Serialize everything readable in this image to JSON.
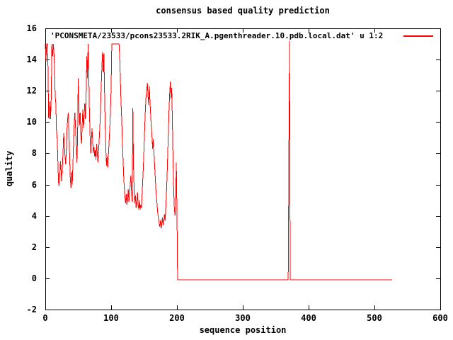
{
  "chart_data": {
    "type": "line",
    "title": "consensus based quality prediction",
    "xlabel": "sequence position",
    "ylabel": "quality",
    "xlim": [
      0,
      600
    ],
    "ylim": [
      -2,
      16
    ],
    "xticks": [
      0,
      100,
      200,
      300,
      400,
      500,
      600
    ],
    "yticks": [
      -2,
      0,
      2,
      4,
      6,
      8,
      10,
      12,
      14,
      16
    ],
    "grid": false,
    "legend_position": "top-right-inside",
    "background_color": "#ffffff",
    "axis_color": "#000000",
    "text_color": "#000000",
    "series": [
      {
        "name": "'PCONSMETA/23533/pcons23533.2RIK_A.pgenthreader.10.pdb.local.dat' u 1:2",
        "color": "#ff0000",
        "points": [
          [
            0,
            15
          ],
          [
            1,
            13.9
          ],
          [
            2,
            15
          ],
          [
            3,
            15
          ],
          [
            4,
            13.8
          ],
          [
            5,
            10.3
          ],
          [
            6,
            10.2
          ],
          [
            7,
            11.3
          ],
          [
            8,
            10.2
          ],
          [
            9,
            11.6
          ],
          [
            10,
            15
          ],
          [
            11,
            14.2
          ],
          [
            12,
            15
          ],
          [
            13,
            14.6
          ],
          [
            14,
            13.4
          ],
          [
            15,
            11.6
          ],
          [
            16,
            11.2
          ],
          [
            17,
            9.4
          ],
          [
            18,
            9
          ],
          [
            19,
            7.6
          ],
          [
            20,
            6.2
          ],
          [
            21,
            5.9
          ],
          [
            22,
            6.6
          ],
          [
            23,
            7.5
          ],
          [
            24,
            6.9
          ],
          [
            25,
            6.2
          ],
          [
            26,
            7.2
          ],
          [
            27,
            8.1
          ],
          [
            28,
            9.3
          ],
          [
            29,
            8.5
          ],
          [
            30,
            7.8
          ],
          [
            31,
            7.3
          ],
          [
            32,
            8.3
          ],
          [
            33,
            9.6
          ],
          [
            34,
            10.2
          ],
          [
            35,
            10.6
          ],
          [
            36,
            9.2
          ],
          [
            37,
            7.8
          ],
          [
            38,
            6.4
          ],
          [
            39,
            5.8
          ],
          [
            40,
            6.8
          ],
          [
            41,
            6
          ],
          [
            42,
            7.4
          ],
          [
            43,
            8.8
          ],
          [
            44,
            10
          ],
          [
            45,
            10.6
          ],
          [
            46,
            9.6
          ],
          [
            47,
            8.6
          ],
          [
            48,
            7.4
          ],
          [
            49,
            9
          ],
          [
            50,
            12.8
          ],
          [
            51,
            11
          ],
          [
            52,
            9.8
          ],
          [
            53,
            10.6
          ],
          [
            54,
            9.2
          ],
          [
            55,
            8.6
          ],
          [
            56,
            9.8
          ],
          [
            57,
            10.8
          ],
          [
            58,
            9.6
          ],
          [
            59,
            10.4
          ],
          [
            60,
            11.2
          ],
          [
            61,
            10.2
          ],
          [
            62,
            11.8
          ],
          [
            63,
            14.2
          ],
          [
            64,
            12.8
          ],
          [
            65,
            15
          ],
          [
            66,
            13.2
          ],
          [
            67,
            10.8
          ],
          [
            68,
            9.2
          ],
          [
            69,
            8
          ],
          [
            70,
            8.8
          ],
          [
            71,
            9.6
          ],
          [
            72,
            8.8
          ],
          [
            73,
            8
          ],
          [
            74,
            8.4
          ],
          [
            75,
            7.8
          ],
          [
            76,
            8.2
          ],
          [
            77,
            7.6
          ],
          [
            78,
            8.6
          ],
          [
            79,
            8
          ],
          [
            80,
            7.4
          ],
          [
            81,
            8.2
          ],
          [
            82,
            9
          ],
          [
            83,
            9.8
          ],
          [
            84,
            11
          ],
          [
            85,
            12.4
          ],
          [
            86,
            13.6
          ],
          [
            87,
            14.5
          ],
          [
            88,
            13.2
          ],
          [
            89,
            14.4
          ],
          [
            90,
            12
          ],
          [
            91,
            9.8
          ],
          [
            92,
            8.2
          ],
          [
            93,
            7.2
          ],
          [
            94,
            7.8
          ],
          [
            95,
            7.1
          ],
          [
            96,
            8
          ],
          [
            97,
            8.8
          ],
          [
            98,
            9.6
          ],
          [
            99,
            10.8
          ],
          [
            100,
            12.2
          ],
          [
            101,
            15
          ],
          [
            102,
            15
          ],
          [
            103,
            15
          ],
          [
            104,
            15
          ],
          [
            105,
            15
          ],
          [
            106,
            15
          ],
          [
            107,
            15
          ],
          [
            108,
            15
          ],
          [
            109,
            15
          ],
          [
            110,
            15
          ],
          [
            111,
            15
          ],
          [
            112,
            15
          ],
          [
            113,
            14.2
          ],
          [
            114,
            12.8
          ],
          [
            115,
            11.4
          ],
          [
            116,
            10.2
          ],
          [
            117,
            9
          ],
          [
            118,
            7.8
          ],
          [
            119,
            6.6
          ],
          [
            120,
            5.8
          ],
          [
            121,
            5.2
          ],
          [
            122,
            4.8
          ],
          [
            123,
            5.4
          ],
          [
            124,
            4.7
          ],
          [
            125,
            5.1
          ],
          [
            126,
            5.7
          ],
          [
            127,
            4.9
          ],
          [
            128,
            5.3
          ],
          [
            129,
            6
          ],
          [
            130,
            6.6
          ],
          [
            131,
            5.6
          ],
          [
            132,
            4.9
          ],
          [
            133,
            10.9
          ],
          [
            134,
            7.2
          ],
          [
            135,
            5.6
          ],
          [
            136,
            4.8
          ],
          [
            137,
            5.3
          ],
          [
            138,
            4.5
          ],
          [
            139,
            4.9
          ],
          [
            140,
            5.5
          ],
          [
            141,
            4.7
          ],
          [
            142,
            4.4
          ],
          [
            143,
            5
          ],
          [
            144,
            4.4
          ],
          [
            145,
            4.7
          ],
          [
            146,
            4.5
          ],
          [
            147,
            5.3
          ],
          [
            148,
            6.2
          ],
          [
            149,
            7.2
          ],
          [
            150,
            8.4
          ],
          [
            151,
            9.6
          ],
          [
            152,
            10.8
          ],
          [
            153,
            11.6
          ],
          [
            154,
            12
          ],
          [
            155,
            12.5
          ],
          [
            156,
            11.7
          ],
          [
            157,
            11.1
          ],
          [
            158,
            12.3
          ],
          [
            159,
            11.3
          ],
          [
            160,
            10.5
          ],
          [
            161,
            9.7
          ],
          [
            162,
            9.1
          ],
          [
            163,
            8.3
          ],
          [
            164,
            8.9
          ],
          [
            165,
            8.1
          ],
          [
            166,
            7.3
          ],
          [
            167,
            6.5
          ],
          [
            168,
            5.7
          ],
          [
            169,
            5.1
          ],
          [
            170,
            4.6
          ],
          [
            171,
            4.1
          ],
          [
            172,
            3.8
          ],
          [
            173,
            3.5
          ],
          [
            174,
            3.3
          ],
          [
            175,
            3.7
          ],
          [
            176,
            3.2
          ],
          [
            177,
            3.5
          ],
          [
            178,
            3.9
          ],
          [
            179,
            3.4
          ],
          [
            180,
            3.6
          ],
          [
            181,
            4.1
          ],
          [
            182,
            3.7
          ],
          [
            183,
            4.5
          ],
          [
            184,
            5.4
          ],
          [
            185,
            6.6
          ],
          [
            186,
            8
          ],
          [
            187,
            9.4
          ],
          [
            188,
            10.8
          ],
          [
            189,
            11.9
          ],
          [
            190,
            12.6
          ],
          [
            191,
            11.5
          ],
          [
            192,
            12.2
          ],
          [
            193,
            10.2
          ],
          [
            194,
            7.8
          ],
          [
            195,
            5.8
          ],
          [
            196,
            4.5
          ],
          [
            197,
            4
          ],
          [
            198,
            4.6
          ],
          [
            199,
            7.4
          ],
          [
            200,
            4.3
          ],
          [
            201,
            -0.1
          ],
          [
            369,
            -0.1
          ],
          [
            370,
            7.5
          ],
          [
            371,
            15.2
          ],
          [
            372,
            -0.1
          ],
          [
            527,
            -0.1
          ]
        ]
      }
    ]
  }
}
